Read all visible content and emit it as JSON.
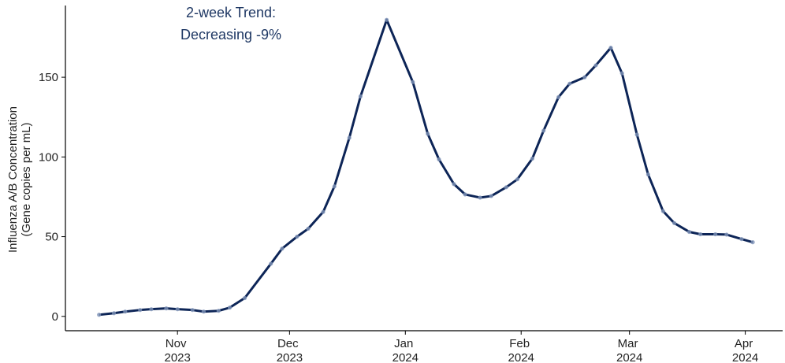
{
  "chart_data": {
    "type": "line",
    "annotation": [
      "2-week Trend:",
      "Decreasing -9%"
    ],
    "y_label": [
      "Influenza A/B Concentration",
      "(Gene copies per mL)"
    ],
    "x": [
      0,
      4,
      7,
      11,
      14,
      18,
      21,
      25,
      28,
      32,
      35,
      39,
      46,
      49,
      53,
      56,
      60,
      63,
      67,
      70,
      77,
      84,
      88,
      91,
      95,
      98,
      102,
      105,
      109,
      112,
      116,
      119,
      123,
      126,
      130,
      133,
      137,
      140,
      144,
      147,
      151,
      154,
      158,
      161,
      165,
      168,
      172,
      175
    ],
    "series": [
      {
        "name": "Influenza A/B",
        "color": "#0d2557",
        "values": [
          1,
          2,
          3,
          4,
          4.5,
          5,
          4.5,
          4,
          3,
          3.5,
          5.5,
          11.5,
          33,
          42.5,
          50,
          55,
          65.5,
          81.5,
          112,
          138,
          186,
          147,
          114.5,
          98.5,
          83,
          76.5,
          74.5,
          75.5,
          81,
          86,
          99,
          116.5,
          137.5,
          146,
          150,
          157.5,
          168.5,
          152.5,
          114,
          89,
          66,
          58.5,
          53,
          51.5,
          51.5,
          51.3,
          48.5,
          46.5
        ]
      }
    ],
    "xlim": [
      -9,
      183
    ],
    "xticks": [
      {
        "value": 21,
        "label": "Nov 2023"
      },
      {
        "value": 51,
        "label": "Dec 2023"
      },
      {
        "value": 82,
        "label": "Jan 2024"
      },
      {
        "value": 113,
        "label": "Feb 2024"
      },
      {
        "value": 142,
        "label": "Mar 2024"
      },
      {
        "value": 173,
        "label": "Apr 2024"
      }
    ],
    "ylim": [
      -9,
      195
    ],
    "yticks": [
      0,
      50,
      100,
      150
    ],
    "marker_color": "#7f93b8"
  }
}
